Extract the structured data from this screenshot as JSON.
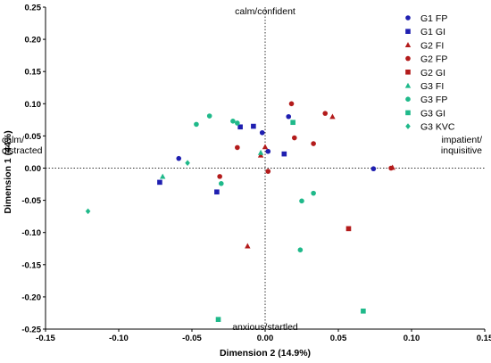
{
  "chart_data": {
    "type": "scatter",
    "xlabel": "Dimension 2 (14.9%)",
    "ylabel": "Dimension 1 (44%)",
    "xlim": [
      -0.15,
      0.15
    ],
    "ylim": [
      -0.25,
      0.25
    ],
    "x_ticks": [
      "-0.15",
      "-0.10",
      "-0.05",
      "0.00",
      "0.05",
      "0.10",
      "0.15"
    ],
    "y_ticks": [
      "0.25",
      "0.20",
      "0.15",
      "0.10",
      "0.05",
      "0.00",
      "-0.05",
      "-0.10",
      "-0.15",
      "-0.20",
      "-0.25"
    ],
    "x_tick_values": [
      -0.15,
      -0.1,
      -0.05,
      0.0,
      0.05,
      0.1,
      0.15
    ],
    "y_tick_values": [
      0.25,
      0.2,
      0.15,
      0.1,
      0.05,
      0.0,
      -0.05,
      -0.1,
      -0.15,
      -0.2,
      -0.25
    ],
    "grid": false,
    "legend_position": "top-right",
    "annotations": {
      "top": "calm/confident",
      "bottom": "anxious/startled",
      "left_line1": "calm/",
      "left_line2": "distracted",
      "right_line1": "impatient/",
      "right_line2": "inquisitive"
    },
    "series": [
      {
        "name": "G1 FP",
        "legend_label": "G1 FP",
        "marker": "circle",
        "color": "#1f1fb0",
        "points": [
          [
            -0.059,
            0.015
          ],
          [
            -0.002,
            0.055
          ],
          [
            0.002,
            0.026
          ],
          [
            0.016,
            0.08
          ],
          [
            0.074,
            -0.001
          ]
        ]
      },
      {
        "name": "G1 GI",
        "legend_label": "G1 GI",
        "marker": "square",
        "color": "#1f1fb0",
        "points": [
          [
            -0.072,
            -0.022
          ],
          [
            -0.033,
            -0.037
          ],
          [
            -0.017,
            0.064
          ],
          [
            -0.008,
            0.065
          ],
          [
            0.013,
            0.022
          ]
        ]
      },
      {
        "name": "G2 FI",
        "legend_label": "G2 FI",
        "marker": "triangle",
        "color": "#b31b1b",
        "points": [
          [
            -0.012,
            -0.121
          ],
          [
            -0.003,
            0.02
          ],
          [
            0.0,
            0.033
          ],
          [
            0.046,
            0.08
          ],
          [
            0.087,
            0.001
          ]
        ]
      },
      {
        "name": "G2 FP",
        "legend_label": "G2 FP",
        "marker": "circle",
        "color": "#b31b1b",
        "points": [
          [
            -0.031,
            -0.013
          ],
          [
            -0.019,
            0.032
          ],
          [
            0.002,
            -0.005
          ],
          [
            0.018,
            0.1
          ],
          [
            0.02,
            0.047
          ],
          [
            0.033,
            0.038
          ],
          [
            0.041,
            0.085
          ],
          [
            0.086,
            0.0
          ]
        ]
      },
      {
        "name": "G2 GI",
        "legend_label": "G2 GI",
        "marker": "square",
        "color": "#b31b1b",
        "points": [
          [
            0.057,
            -0.094
          ]
        ]
      },
      {
        "name": "G3 FI",
        "legend_label": "G3 FI",
        "marker": "triangle",
        "color": "#1fb98a",
        "points": [
          [
            -0.07,
            -0.013
          ],
          [
            -0.003,
            0.024
          ]
        ]
      },
      {
        "name": "G3 FP",
        "legend_label": "G3 FP",
        "marker": "circle",
        "color": "#1fb98a",
        "points": [
          [
            -0.047,
            0.068
          ],
          [
            -0.038,
            0.081
          ],
          [
            -0.03,
            -0.024
          ],
          [
            -0.022,
            0.073
          ],
          [
            -0.019,
            0.07
          ],
          [
            0.025,
            -0.051
          ],
          [
            0.033,
            -0.039
          ],
          [
            0.024,
            -0.127
          ]
        ]
      },
      {
        "name": "G3 GI",
        "legend_label": "G3 GI",
        "marker": "square",
        "color": "#1fb98a",
        "points": [
          [
            -0.032,
            -0.235
          ],
          [
            0.019,
            0.071
          ],
          [
            0.067,
            -0.222
          ]
        ]
      },
      {
        "name": "G3 KVC",
        "legend_label": "G3 KVC",
        "marker": "diamond",
        "color": "#1fb98a",
        "points": [
          [
            -0.121,
            -0.067
          ],
          [
            -0.053,
            0.008
          ]
        ]
      }
    ]
  }
}
